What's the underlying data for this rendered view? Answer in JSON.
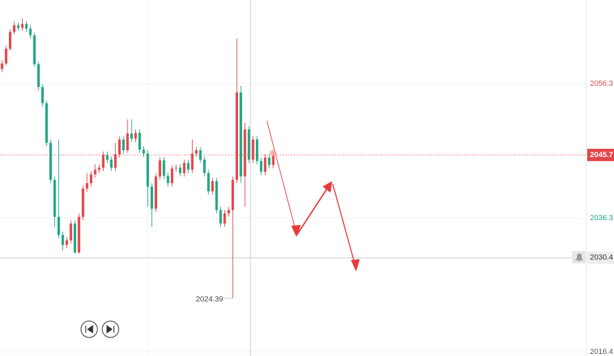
{
  "chart_data": {
    "type": "candlestick",
    "ylim": [
      2015.79,
      2068.75
    ],
    "yticks": [
      2056.3,
      2036.3,
      2016.4
    ],
    "grid": true,
    "up_color": "#e2464a",
    "down_color": "#1fa683",
    "last_price": 2045.7,
    "crosshair_price": 2030.4,
    "open": [
      2058.5,
      2059.3,
      2061.5,
      2064.0,
      2065.0,
      2064.6,
      2065.2,
      2064.5,
      2063.5,
      2059.2,
      2055.8,
      2053.4,
      2047.5,
      2042.0,
      2036.5,
      2033.8,
      2032.3,
      2033.0,
      2035.5,
      2031.2,
      2036.5,
      2040.7,
      2041.5,
      2042.8,
      2043.5,
      2043.8,
      2045.7,
      2045.0,
      2043.8,
      2045.8,
      2048.0,
      2046.4,
      2048.9,
      2048.1,
      2049.0,
      2046.5,
      2045.9,
      2041.0,
      2037.7,
      2042.5,
      2044.9,
      2042.6,
      2041.5,
      2043.7,
      2043.8,
      2043.0,
      2044.5,
      2043.5,
      2045.9,
      2046.4,
      2045.0,
      2043.0,
      2040.3,
      2041.8,
      2037.5,
      2035.5,
      2037.0,
      2037.5,
      2042.0,
      2055.0,
      2042.5,
      2049.5,
      2045.0,
      2048.0,
      2044.8,
      2043.2,
      2045.3,
      2044.2
    ],
    "high": [
      2059.8,
      2062.0,
      2064.4,
      2065.6,
      2065.4,
      2066.0,
      2065.6,
      2065.0,
      2063.9,
      2059.6,
      2056.2,
      2053.8,
      2048.0,
      2042.5,
      2048.0,
      2034.3,
      2033.5,
      2036.0,
      2036.0,
      2037.0,
      2041.2,
      2043.0,
      2043.3,
      2044.3,
      2044.3,
      2046.2,
      2046.2,
      2045.5,
      2047.5,
      2048.5,
      2048.5,
      2051.0,
      2051.0,
      2049.5,
      2049.5,
      2047.0,
      2046.4,
      2041.5,
      2043.0,
      2045.4,
      2045.4,
      2043.1,
      2044.2,
      2044.3,
      2044.3,
      2045.0,
      2045.0,
      2048.0,
      2046.9,
      2046.9,
      2045.5,
      2043.5,
      2042.3,
      2042.3,
      2038.0,
      2037.5,
      2038.0,
      2042.5,
      2063.0,
      2056.0,
      2050.5,
      2050.0,
      2048.5,
      2048.5,
      2045.3,
      2045.8,
      2045.8,
      2046.2
    ],
    "low": [
      2058.0,
      2059.0,
      2061.2,
      2063.6,
      2064.2,
      2064.2,
      2064.0,
      2063.0,
      2058.8,
      2055.3,
      2052.9,
      2047.0,
      2041.5,
      2035.0,
      2033.3,
      2031.5,
      2031.8,
      2032.5,
      2031.0,
      2031.0,
      2036.0,
      2040.2,
      2041.0,
      2042.3,
      2043.0,
      2043.3,
      2044.5,
      2043.3,
      2043.3,
      2045.3,
      2045.9,
      2046.0,
      2047.6,
      2047.6,
      2046.0,
      2045.4,
      2038.0,
      2035.0,
      2037.2,
      2042.0,
      2042.1,
      2041.0,
      2041.0,
      2043.2,
      2042.5,
      2042.5,
      2043.0,
      2043.0,
      2045.4,
      2044.5,
      2042.5,
      2039.8,
      2039.8,
      2037.0,
      2035.0,
      2035.0,
      2036.5,
      2024.39,
      2041.5,
      2041.5,
      2038.0,
      2044.5,
      2044.5,
      2044.3,
      2042.7,
      2042.7,
      2043.7,
      2043.7
    ],
    "close": [
      2059.3,
      2061.5,
      2064.0,
      2065.0,
      2064.6,
      2065.2,
      2064.5,
      2063.5,
      2059.2,
      2055.8,
      2053.4,
      2047.5,
      2042.0,
      2036.5,
      2033.8,
      2032.3,
      2033.0,
      2035.5,
      2031.2,
      2036.5,
      2040.7,
      2041.5,
      2042.8,
      2043.5,
      2043.8,
      2045.7,
      2045.0,
      2043.8,
      2045.8,
      2048.0,
      2046.4,
      2048.9,
      2048.1,
      2049.0,
      2046.5,
      2045.9,
      2041.0,
      2037.7,
      2042.5,
      2044.9,
      2042.6,
      2041.5,
      2043.7,
      2043.8,
      2043.0,
      2044.5,
      2043.5,
      2045.9,
      2046.4,
      2045.0,
      2043.0,
      2040.3,
      2041.8,
      2037.5,
      2035.5,
      2037.0,
      2037.5,
      2042.0,
      2055.0,
      2042.5,
      2049.5,
      2045.0,
      2048.0,
      2044.8,
      2043.2,
      2045.3,
      2044.2,
      2045.7
    ]
  }
}
